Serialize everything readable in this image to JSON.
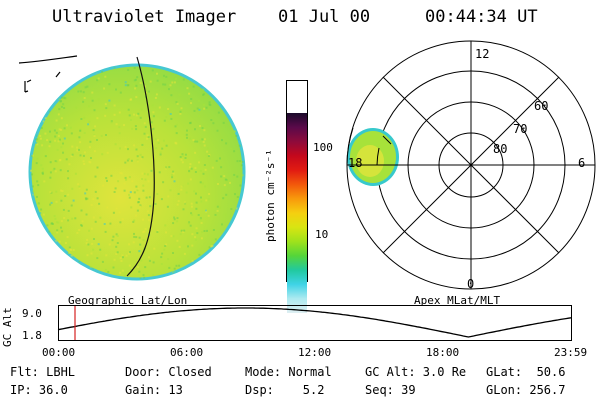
{
  "header": {
    "instrument": "Ultraviolet Imager",
    "date": "01 Jul 00",
    "time": "00:44:34 UT"
  },
  "geo_panel": {
    "caption": "Geographic Lat/Lon"
  },
  "polar_panel": {
    "caption": "Apex MLat/MLT",
    "mlt_labels": {
      "top": "12",
      "bottom": "0",
      "left": "18",
      "right": "6"
    },
    "lat_labels": [
      "60",
      "70",
      "80"
    ]
  },
  "colorbar": {
    "unit": "photon cm⁻²s⁻¹",
    "ticks": [
      "100",
      "10"
    ],
    "colors": [
      "#1a0b2b",
      "#5a0a4a",
      "#8e0b3b",
      "#c4081c",
      "#e11b12",
      "#f2580b",
      "#f89a0c",
      "#f5cf10",
      "#d8e512",
      "#9fe21c",
      "#55d53a",
      "#21c99f",
      "#3fd3e6",
      "#aeeaf0",
      "#dfeff2"
    ]
  },
  "altitude_plot": {
    "ylabel": "GC Alt",
    "yticks": [
      "9.0",
      "1.8"
    ],
    "xticks": [
      "00:00",
      "06:00",
      "12:00",
      "18:00",
      "23:59"
    ],
    "current_time_marker": "00:44"
  },
  "info": {
    "row1": {
      "filter": "Flt: LBHL",
      "door": "Door: Closed",
      "mode": "Mode: Normal",
      "gc_alt": "GC Alt: 3.0 Re",
      "glat": "GLat:  50.6"
    },
    "row2": {
      "ip": "IP: 36.0",
      "gain": "Gain: 13",
      "dsp": "Dsp:    5.2",
      "seq": "Seq: 39",
      "glon": "GLon: 256.7"
    }
  },
  "colors": {
    "aurora_base": "#a7e23a",
    "aurora_bright": "#e3e63a",
    "aurora_dim": "#6fd24a",
    "aurora_edge": "#37c9cc",
    "marker": "#d62020"
  }
}
